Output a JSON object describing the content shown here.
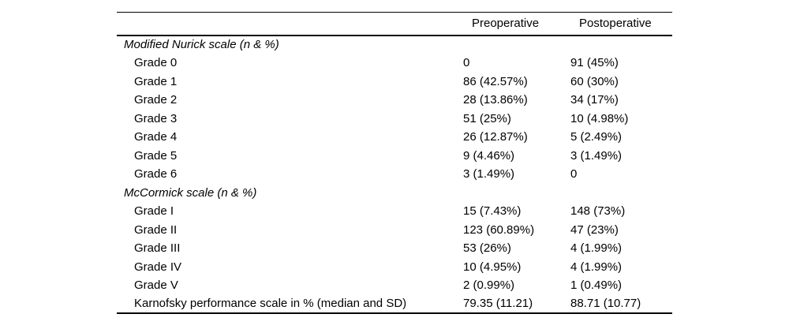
{
  "table": {
    "columns": {
      "label": "",
      "pre": "Preoperative",
      "post": "Postoperative"
    },
    "sections": [
      {
        "header": "Modified Nurick scale (n & %)",
        "rows": [
          {
            "label": "Grade 0",
            "pre": "0",
            "post": "91 (45%)"
          },
          {
            "label": "Grade 1",
            "pre": "86 (42.57%)",
            "post": "60 (30%)"
          },
          {
            "label": "Grade 2",
            "pre": "28 (13.86%)",
            "post": "34 (17%)"
          },
          {
            "label": "Grade 3",
            "pre": "51 (25%)",
            "post": "10 (4.98%)"
          },
          {
            "label": "Grade 4",
            "pre": "26 (12.87%)",
            "post": "5 (2.49%)"
          },
          {
            "label": "Grade 5",
            "pre": "9 (4.46%)",
            "post": "3 (1.49%)"
          },
          {
            "label": "Grade 6",
            "pre": "3 (1.49%)",
            "post": "0"
          }
        ]
      },
      {
        "header": "McCormick scale (n & %)",
        "rows": [
          {
            "label": "Grade I",
            "pre": "15 (7.43%)",
            "post": "148 (73%)"
          },
          {
            "label": "Grade II",
            "pre": "123 (60.89%)",
            "post": "47 (23%)"
          },
          {
            "label": "Grade III",
            "pre": "53 (26%)",
            "post": "4 (1.99%)"
          },
          {
            "label": "Grade IV",
            "pre": "10 (4.95%)",
            "post": "4 (1.99%)"
          },
          {
            "label": "Grade V",
            "pre": "2 (0.99%)",
            "post": "1 (0.49%)"
          },
          {
            "label": "Karnofsky performance scale in % (median and SD)",
            "pre": "79.35 (11.21)",
            "post": "88.71 (10.77)"
          }
        ]
      }
    ]
  },
  "colors": {
    "text": "#000000",
    "background": "#ffffff",
    "rule": "#000000"
  }
}
